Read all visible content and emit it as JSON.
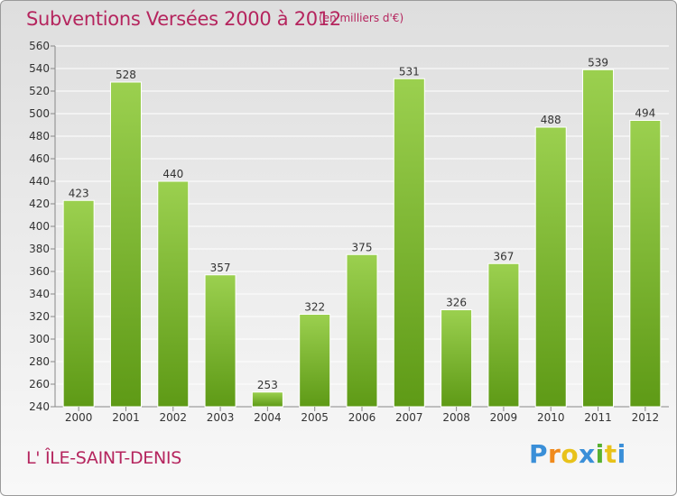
{
  "header": {
    "title": "Subventions Versées 2000 à 2012",
    "unit": "(en milliers d'€)"
  },
  "footer": {
    "place": "L' ÎLE-SAINT-DENIS",
    "logo_text": "Proxiti",
    "logo_colors": [
      "#3a8fd8",
      "#f08a1c",
      "#e8c21a",
      "#3a8fd8",
      "#58b030",
      "#e8c21a",
      "#3a8fd8"
    ]
  },
  "colors": {
    "bar_light": "#9bd04f",
    "bar_dark": "#5e9a16",
    "title": "#b5255e",
    "grid": "#ffffff"
  },
  "chart_data": {
    "type": "bar",
    "title": "Subventions Versées 2000 à 2012",
    "subtitle": "(en milliers d'€)",
    "categories": [
      "2000",
      "2001",
      "2002",
      "2003",
      "2004",
      "2005",
      "2006",
      "2007",
      "2008",
      "2009",
      "2010",
      "2011",
      "2012"
    ],
    "values": [
      423,
      528,
      440,
      357,
      253,
      322,
      375,
      531,
      326,
      367,
      488,
      539,
      494
    ],
    "ylim": [
      240,
      560
    ],
    "ytick_step": 20,
    "grid": true,
    "legend": "none"
  }
}
